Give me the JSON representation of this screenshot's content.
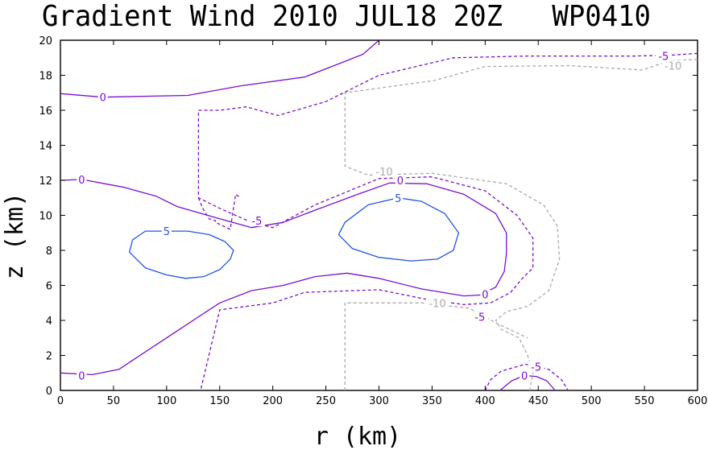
{
  "chart_data": {
    "type": "contour",
    "title": "Gradient Wind 2010 JUL18 20Z   WP0410",
    "xlabel": "r (km)",
    "ylabel": "z (km)",
    "xlim": [
      0,
      600
    ],
    "ylim": [
      0,
      20
    ],
    "x_ticks": [
      "0",
      "50",
      "100",
      "150",
      "200",
      "250",
      "300",
      "350",
      "400",
      "450",
      "500",
      "550",
      "600"
    ],
    "y_ticks": [
      "0",
      "2",
      "4",
      "6",
      "8",
      "10",
      "12",
      "14",
      "16",
      "18",
      "20"
    ],
    "grid": false,
    "levels": [
      {
        "value": "5",
        "color": "#2255dd",
        "dash": "solid",
        "contours": [
          [
            [
              100,
              9.1
            ],
            [
              80,
              9.1
            ],
            [
              68,
              8.6
            ],
            [
              65,
              7.9
            ],
            [
              80,
              7.0
            ],
            [
              100,
              6.6
            ],
            [
              118,
              6.4
            ],
            [
              135,
              6.5
            ],
            [
              150,
              6.9
            ],
            [
              160,
              7.5
            ],
            [
              163,
              8.0
            ],
            [
              155,
              8.5
            ],
            [
              140,
              8.9
            ],
            [
              120,
              9.1
            ],
            [
              100,
              9.1
            ]
          ],
          [
            [
              318,
              11.0
            ],
            [
              290,
              10.6
            ],
            [
              268,
              9.6
            ],
            [
              262,
              8.9
            ],
            [
              275,
              8.1
            ],
            [
              300,
              7.6
            ],
            [
              330,
              7.4
            ],
            [
              355,
              7.5
            ],
            [
              370,
              8.0
            ],
            [
              375,
              9.0
            ],
            [
              362,
              10.1
            ],
            [
              340,
              10.8
            ],
            [
              318,
              11.0
            ]
          ]
        ],
        "labels": [
          [
            100,
            9.1
          ],
          [
            318,
            11.0
          ]
        ]
      },
      {
        "value": "0",
        "color": "#7b10c9",
        "dash": "solid",
        "contours": [
          [
            [
              0,
              16.95
            ],
            [
              40,
              16.75
            ],
            [
              120,
              16.85
            ],
            [
              170,
              17.4
            ],
            [
              230,
              17.9
            ],
            [
              260,
              18.6
            ],
            [
              285,
              19.2
            ],
            [
              300,
              20.0
            ]
          ],
          [
            [
              0,
              12.0
            ],
            [
              20,
              12.05
            ],
            [
              60,
              11.6
            ],
            [
              90,
              11.1
            ],
            [
              110,
              10.5
            ],
            [
              150,
              9.8
            ],
            [
              180,
              9.3
            ],
            [
              210,
              9.6
            ],
            [
              240,
              10.3
            ],
            [
              280,
              11.2
            ],
            [
              310,
              11.85
            ],
            [
              345,
              11.8
            ],
            [
              380,
              11.2
            ],
            [
              410,
              10.1
            ],
            [
              420,
              9.0
            ],
            [
              420,
              7.8
            ],
            [
              418,
              6.8
            ],
            [
              410,
              5.9
            ],
            [
              395,
              5.45
            ],
            [
              380,
              5.4
            ],
            [
              340,
              5.8
            ],
            [
              300,
              6.4
            ],
            [
              270,
              6.7
            ],
            [
              240,
              6.5
            ],
            [
              210,
              6.0
            ],
            [
              180,
              5.7
            ],
            [
              150,
              5.0
            ],
            [
              110,
              3.4
            ],
            [
              80,
              2.2
            ],
            [
              55,
              1.2
            ],
            [
              30,
              0.9
            ],
            [
              0,
              1.0
            ]
          ],
          [
            [
              414,
              0.0
            ],
            [
              425,
              0.55
            ],
            [
              437,
              0.85
            ],
            [
              448,
              0.8
            ],
            [
              458,
              0.55
            ],
            [
              466,
              0.0
            ]
          ]
        ],
        "labels": [
          [
            40,
            16.75
          ],
          [
            20,
            12.05
          ],
          [
            320,
            12.0
          ],
          [
            400,
            5.5
          ],
          [
            20,
            0.85
          ],
          [
            437,
            0.85
          ]
        ]
      },
      {
        "value": "-5",
        "color": "#7b10c9",
        "dash": "dashed",
        "contours": [
          [
            [
              130,
              11.0
            ],
            [
              134,
              10.4
            ],
            [
              140,
              9.8
            ],
            [
              146,
              9.7
            ],
            [
              146,
              9.6
            ],
            [
              160,
              9.2
            ],
            [
              165,
              11.2
            ],
            [
              170,
              11.0
            ]
          ],
          [
            [
              600,
              19.25
            ],
            [
              575,
              19.15
            ],
            [
              540,
              19.1
            ],
            [
              440,
              19.1
            ],
            [
              370,
              19.0
            ],
            [
              300,
              18.0
            ],
            [
              250,
              16.5
            ],
            [
              205,
              15.7
            ],
            [
              175,
              16.2
            ],
            [
              150,
              16.0
            ],
            [
              130,
              16.0
            ],
            [
              130,
              11.0
            ],
            [
              150,
              10.4
            ],
            [
              180,
              9.6
            ],
            [
              200,
              9.3
            ],
            [
              240,
              10.6
            ],
            [
              300,
              12.1
            ],
            [
              350,
              12.2
            ],
            [
              400,
              11.4
            ],
            [
              430,
              10.0
            ],
            [
              445,
              8.7
            ],
            [
              445,
              7.0
            ],
            [
              435,
              6.4
            ],
            [
              424,
              5.6
            ],
            [
              405,
              5.0
            ],
            [
              380,
              4.9
            ],
            [
              345,
              5.2
            ],
            [
              300,
              5.75
            ],
            [
              230,
              5.6
            ],
            [
              200,
              5.0
            ],
            [
              150,
              4.6
            ],
            [
              132,
              0.0
            ]
          ],
          [
            [
              400,
              0.0
            ],
            [
              405,
              0.6
            ],
            [
              415,
              1.1
            ],
            [
              438,
              1.5
            ],
            [
              460,
              1.2
            ],
            [
              472,
              0.6
            ],
            [
              478,
              0.0
            ]
          ]
        ],
        "labels": [
          [
            185,
            9.7
          ],
          [
            395,
            4.2
          ],
          [
            448,
            1.35
          ],
          [
            568,
            19.1
          ]
        ]
      },
      {
        "value": "-10",
        "color": "#aaaaaa",
        "dash": "dashed",
        "contours": [
          [
            [
              600,
              18.9
            ],
            [
              575,
              18.85
            ],
            [
              548,
              18.3
            ],
            [
              480,
              18.55
            ],
            [
              400,
              18.5
            ],
            [
              352,
              17.7
            ],
            [
              268,
              17.0
            ],
            [
              268,
              12.8
            ],
            [
              290,
              12.3
            ],
            [
              350,
              12.4
            ],
            [
              420,
              11.8
            ],
            [
              455,
              10.6
            ],
            [
              468,
              9.4
            ],
            [
              470,
              7.5
            ],
            [
              460,
              5.7
            ],
            [
              440,
              4.8
            ],
            [
              420,
              4.5
            ],
            [
              410,
              4.0
            ],
            [
              415,
              3.5
            ],
            [
              432,
              3.0
            ],
            [
              440,
              2.0
            ],
            [
              445,
              1.0
            ],
            [
              442,
              0.0
            ]
          ],
          [
            [
              268,
              0.0
            ],
            [
              268,
              5.0
            ],
            [
              340,
              5.0
            ],
            [
              385,
              4.7
            ],
            [
              412,
              3.8
            ],
            [
              440,
              3.0
            ]
          ]
        ],
        "labels": [
          [
            305,
            12.5
          ],
          [
            355,
            5.0
          ],
          [
            577,
            18.55
          ]
        ]
      }
    ]
  }
}
